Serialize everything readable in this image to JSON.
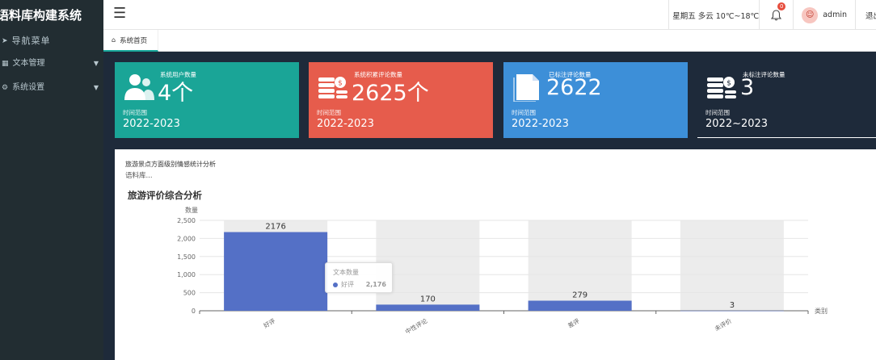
{
  "sidebar": {
    "brand": "语料库构建系统",
    "nav_head": "导航菜单",
    "items": [
      {
        "label": "文本管理",
        "icon": "grid-icon"
      },
      {
        "label": "系统设置",
        "icon": "gear-icon"
      }
    ]
  },
  "header": {
    "menu_icon": "hamburger-icon",
    "weather": "星期五 多云 10℃~18℃",
    "bell_count": "0",
    "user": "admin",
    "logout": "退出"
  },
  "tabbar": {
    "home_tab": "系统首页"
  },
  "cards": [
    {
      "title": "系统用户数量",
      "value": "4个",
      "range_label": "时间范围",
      "range": "2022-2023",
      "color": "#1aa597",
      "icon": "users-icon"
    },
    {
      "title": "系统积累评论数量",
      "value": "2625个",
      "range_label": "时间范围",
      "range": "2022-2023",
      "color": "#e65c4c",
      "icon": "coins-icon"
    },
    {
      "title": "已标注评论数量",
      "value": "2622",
      "range_label": "时间范围",
      "range": "2022-2023",
      "color": "#3d8fd8",
      "icon": "document-icon"
    },
    {
      "title": "未标注评论数量",
      "value": "3",
      "range_label": "时间范围",
      "range": "2022~2023",
      "color": "#1e2a3a",
      "icon": "coins-icon"
    }
  ],
  "panel": {
    "subtitle": "旅游景点方面级别情感统计分析",
    "subtitle2": "语料库...",
    "chart_title": "旅游评价综合分析"
  },
  "tooltip": {
    "series": "文本数量",
    "category": "好评",
    "value": "2,176"
  },
  "chart_data": {
    "type": "bar",
    "categories": [
      "好评",
      "中性评论",
      "差评",
      "未评价"
    ],
    "series": [
      {
        "name": "文本数量",
        "values": [
          2176,
          170,
          279,
          3
        ]
      }
    ],
    "data_labels": [
      "2176",
      "170",
      "279",
      "3"
    ],
    "ylabel": "数量",
    "xlabel": "类别",
    "ylim": [
      0,
      2500
    ],
    "yticks": [
      0,
      500,
      1000,
      1500,
      2000,
      2500
    ],
    "ytick_labels": [
      "0",
      "500",
      "1,000",
      "1,500",
      "2,000",
      "2,500"
    ],
    "bar_color": "#5470c6",
    "grid": true
  }
}
